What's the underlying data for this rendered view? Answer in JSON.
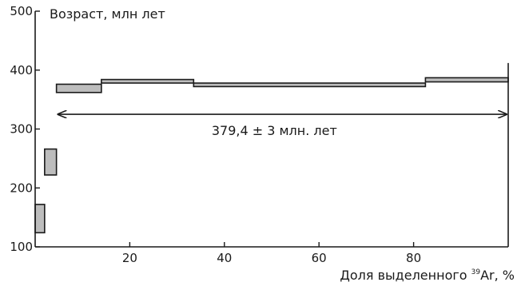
{
  "chart_data": {
    "type": "step-spectrum",
    "title": "",
    "ylabel": "Возраст, млн лет",
    "xlabel": {
      "prefix": "Доля выделенного ",
      "superscript": "39",
      "suffix": "Ar, %"
    },
    "xlim": [
      0,
      100
    ],
    "ylim": [
      100,
      500
    ],
    "x_ticks": [
      20,
      40,
      60,
      80
    ],
    "y_ticks": [
      100,
      200,
      300,
      400,
      500
    ],
    "steps": [
      {
        "x_start": 0.0,
        "x_end": 2.0,
        "age_min": 124,
        "age_max": 172
      },
      {
        "x_start": 2.0,
        "x_end": 4.5,
        "age_min": 222,
        "age_max": 266
      },
      {
        "x_start": 4.5,
        "x_end": 14.0,
        "age_min": 362,
        "age_max": 376
      },
      {
        "x_start": 14.0,
        "x_end": 33.5,
        "age_min": 378,
        "age_max": 384
      },
      {
        "x_start": 33.5,
        "x_end": 82.5,
        "age_min": 372,
        "age_max": 378
      },
      {
        "x_start": 82.5,
        "x_end": 100.0,
        "age_min": 380,
        "age_max": 387
      }
    ],
    "plateau": {
      "x_start": 4.5,
      "x_end": 100,
      "arrow_age": 325,
      "label": "379,4 ± 3 млн. лет"
    },
    "colors": {
      "box_fill": "#bdbdbd",
      "line": "#1a1a1a"
    }
  }
}
